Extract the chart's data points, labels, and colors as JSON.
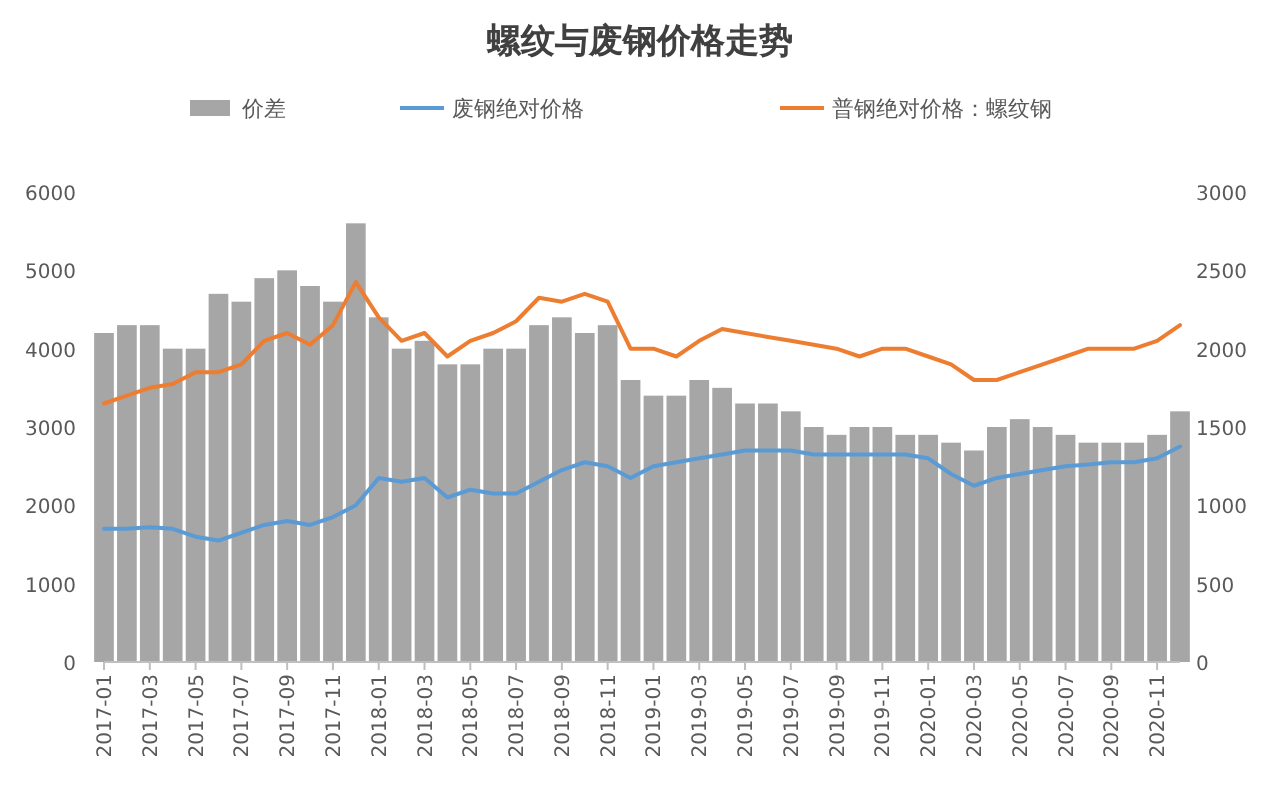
{
  "chart_data": {
    "type": "bar",
    "title": "螺纹与废钢价格走势",
    "legend": "top",
    "grid": false,
    "x": [
      "2017-01",
      "2017-02",
      "2017-03",
      "2017-04",
      "2017-05",
      "2017-06",
      "2017-07",
      "2017-08",
      "2017-09",
      "2017-10",
      "2017-11",
      "2017-12",
      "2018-01",
      "2018-02",
      "2018-03",
      "2018-04",
      "2018-05",
      "2018-06",
      "2018-07",
      "2018-08",
      "2018-09",
      "2018-10",
      "2018-11",
      "2018-12",
      "2019-01",
      "2019-02",
      "2019-03",
      "2019-04",
      "2019-05",
      "2019-06",
      "2019-07",
      "2019-08",
      "2019-09",
      "2019-10",
      "2019-11",
      "2019-12",
      "2020-01",
      "2020-02",
      "2020-03",
      "2020-04",
      "2020-05",
      "2020-06",
      "2020-07",
      "2020-08",
      "2020-09",
      "2020-10",
      "2020-11",
      "2020-12"
    ],
    "series": [
      {
        "name": "价差",
        "axis": "y2",
        "color": "#a6a6a6",
        "values": [
          2100,
          2150,
          2150,
          2000,
          2000,
          2350,
          2300,
          2450,
          2500,
          2400,
          2300,
          2800,
          2200,
          2000,
          2050,
          1900,
          1900,
          2000,
          2000,
          2150,
          2200,
          2100,
          2150,
          1800,
          1700,
          1700,
          1800,
          1750,
          1650,
          1650,
          1600,
          1500,
          1450,
          1500,
          1500,
          1450,
          1450,
          1400,
          1350,
          1500,
          1550,
          1500,
          1450,
          1400,
          1400,
          1400,
          1450,
          1600
        ]
      },
      {
        "name": "废钢绝对价格",
        "type": "line",
        "color": "#5b9bd5",
        "values": [
          1700,
          1700,
          1720,
          1700,
          1600,
          1550,
          1650,
          1750,
          1800,
          1750,
          1850,
          2000,
          2350,
          2300,
          2350,
          2100,
          2200,
          2150,
          2150,
          2300,
          2450,
          2550,
          2500,
          2350,
          2500,
          2550,
          2600,
          2650,
          2700,
          2700,
          2700,
          2650,
          2650,
          2650,
          2650,
          2650,
          2600,
          2400,
          2250,
          2350,
          2400,
          2450,
          2500,
          2520,
          2550,
          2550,
          2600,
          2750
        ]
      },
      {
        "name": "普钢绝对价格：螺纹钢",
        "type": "line",
        "color": "#ed7d31",
        "values": [
          3300,
          3400,
          3500,
          3550,
          3700,
          3700,
          3800,
          4100,
          4200,
          4050,
          4300,
          4850,
          4400,
          4100,
          4200,
          3900,
          4100,
          4200,
          4350,
          4650,
          4600,
          4700,
          4600,
          4000,
          4000,
          3900,
          4100,
          4250,
          4200,
          4150,
          4100,
          4050,
          4000,
          3900,
          4000,
          4000,
          3900,
          3800,
          3600,
          3600,
          3700,
          3800,
          3900,
          4000,
          4000,
          4000,
          4100,
          4300
        ]
      }
    ],
    "xlim": [
      "2017-01",
      "2020-12"
    ],
    "xticks": [
      "2017-01",
      "2017-03",
      "2017-05",
      "2017-07",
      "2017-09",
      "2017-11",
      "2018-01",
      "2018-03",
      "2018-05",
      "2018-07",
      "2018-09",
      "2018-11",
      "2019-01",
      "2019-03",
      "2019-05",
      "2019-07",
      "2019-09",
      "2019-11",
      "2020-01",
      "2020-03",
      "2020-05",
      "2020-07",
      "2020-09",
      "2020-11"
    ],
    "ylim": [
      0,
      6000
    ],
    "yticks": [
      0,
      1000,
      2000,
      3000,
      4000,
      5000,
      6000
    ],
    "y2lim": [
      0,
      3000
    ],
    "y2ticks": [
      0,
      500,
      1000,
      1500,
      2000,
      2500,
      3000
    ]
  }
}
